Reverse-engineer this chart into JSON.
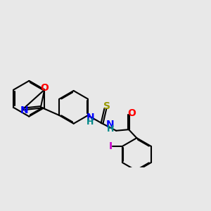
{
  "bg_color": "#e8e8e8",
  "bond_color": "#000000",
  "bond_width": 1.5,
  "atom_colors": {
    "O": "#ff0000",
    "N": "#0000ff",
    "S": "#999900",
    "I": "#cc00cc",
    "H": "#008888",
    "C": "#000000"
  },
  "font_size": 9,
  "label_fontsize": 9
}
